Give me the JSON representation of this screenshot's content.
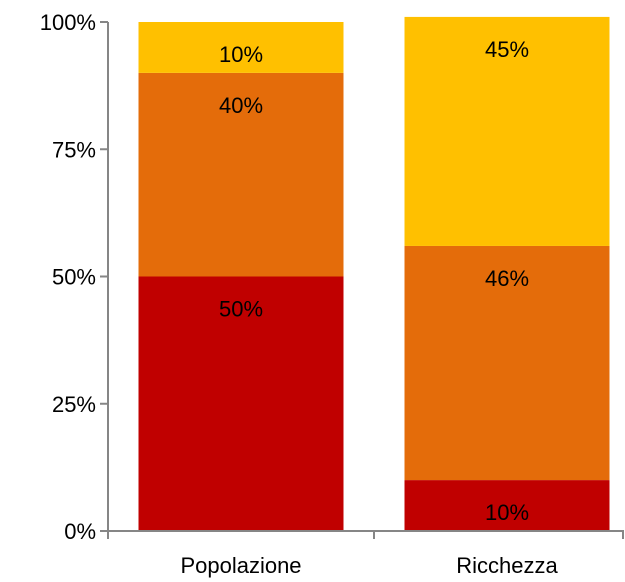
{
  "chart_data": {
    "type": "bar",
    "stacked": true,
    "categories": [
      "Popolazione",
      "Ricchezza"
    ],
    "series": [
      {
        "values": [
          50,
          10
        ],
        "labels": [
          "50%",
          "10%"
        ],
        "color": "#C00000"
      },
      {
        "values": [
          40,
          46
        ],
        "labels": [
          "40%",
          "46%"
        ],
        "color": "#E46C0A"
      },
      {
        "values": [
          10,
          45
        ],
        "labels": [
          "10%",
          "45%"
        ],
        "color": "#FFC000"
      }
    ],
    "yticks": [
      0,
      25,
      50,
      75,
      100
    ],
    "ytick_labels": [
      "0%",
      "25%",
      "50%",
      "75%",
      "100%"
    ],
    "ylim": [
      0,
      100
    ],
    "title": "",
    "xlabel": "",
    "ylabel": "",
    "grid": false,
    "legend": "none"
  }
}
